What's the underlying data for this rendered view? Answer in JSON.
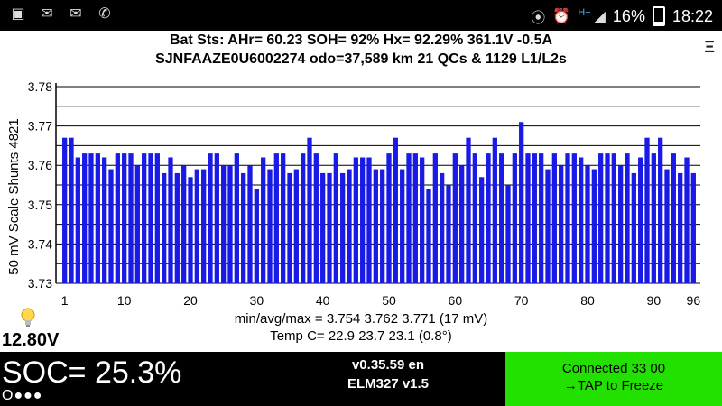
{
  "status_bar": {
    "icons_left": [
      "gallery-icon",
      "mail-icon",
      "email-icon",
      "phone-icon"
    ],
    "icons_right": [
      "bluetooth-icon",
      "alarm-icon",
      "hplus-signal-icon",
      "signal-icon"
    ],
    "network_type": "H+",
    "battery": "16%",
    "time": "18:22"
  },
  "header": {
    "line1": "Bat Sts:  AHr= 60.23  SOH= 92%   Hx= 92.29%   361.1V -0.5A",
    "line2": "SJNFAAZE0U6002274 odo=37,589 km  21 QCs  &  1129 L1/L2s",
    "menu_label": "Ξ"
  },
  "footer": {
    "stats": "min/avg/max = 3.754 3.762 3.771  (17 mV)",
    "temp": "Temp C= 22.9  23.7  23.1  (0.8°)",
    "voltage": "12.80V"
  },
  "bottom": {
    "soc": "SOC= 25.3%",
    "dots": "O●●●",
    "version": "v0.35.59 en",
    "adapter": "ELM327 v1.5",
    "connected": "Connected 33 00",
    "tap": "→TAP to Freeze"
  },
  "colors": {
    "bar": "#1a1ae6",
    "connected_bg": "#22e000"
  },
  "chart_data": {
    "type": "bar",
    "ylabel": "50 mV Scale   Shunts 4821",
    "ylim": [
      3.73,
      3.78
    ],
    "yticks": [
      3.73,
      3.74,
      3.75,
      3.76,
      3.77,
      3.78
    ],
    "xticks": [
      1,
      10,
      20,
      30,
      40,
      50,
      60,
      70,
      80,
      90,
      96
    ],
    "x": [
      1,
      2,
      3,
      4,
      5,
      6,
      7,
      8,
      9,
      10,
      11,
      12,
      13,
      14,
      15,
      16,
      17,
      18,
      19,
      20,
      21,
      22,
      23,
      24,
      25,
      26,
      27,
      28,
      29,
      30,
      31,
      32,
      33,
      34,
      35,
      36,
      37,
      38,
      39,
      40,
      41,
      42,
      43,
      44,
      45,
      46,
      47,
      48,
      49,
      50,
      51,
      52,
      53,
      54,
      55,
      56,
      57,
      58,
      59,
      60,
      61,
      62,
      63,
      64,
      65,
      66,
      67,
      68,
      69,
      70,
      71,
      72,
      73,
      74,
      75,
      76,
      77,
      78,
      79,
      80,
      81,
      82,
      83,
      84,
      85,
      86,
      87,
      88,
      89,
      90,
      91,
      92,
      93,
      94,
      95,
      96
    ],
    "values": [
      3.767,
      3.767,
      3.762,
      3.763,
      3.763,
      3.763,
      3.762,
      3.759,
      3.763,
      3.763,
      3.763,
      3.76,
      3.763,
      3.763,
      3.763,
      3.758,
      3.762,
      3.758,
      3.76,
      3.757,
      3.759,
      3.759,
      3.763,
      3.763,
      3.76,
      3.76,
      3.763,
      3.758,
      3.76,
      3.754,
      3.762,
      3.759,
      3.763,
      3.763,
      3.758,
      3.759,
      3.763,
      3.767,
      3.763,
      3.758,
      3.758,
      3.763,
      3.758,
      3.759,
      3.762,
      3.762,
      3.762,
      3.759,
      3.759,
      3.763,
      3.767,
      3.759,
      3.763,
      3.763,
      3.762,
      3.754,
      3.763,
      3.758,
      3.755,
      3.763,
      3.76,
      3.767,
      3.763,
      3.757,
      3.763,
      3.767,
      3.763,
      3.755,
      3.763,
      3.771,
      3.763,
      3.763,
      3.763,
      3.759,
      3.763,
      3.76,
      3.763,
      3.763,
      3.762,
      3.76,
      3.759,
      3.763,
      3.763,
      3.763,
      3.76,
      3.763,
      3.758,
      3.762,
      3.767,
      3.763,
      3.767,
      3.759,
      3.763,
      3.758,
      3.762,
      3.758
    ]
  }
}
